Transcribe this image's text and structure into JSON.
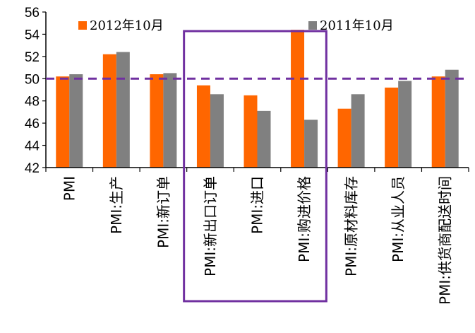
{
  "chart_data": {
    "type": "bar",
    "categories": [
      "PMI",
      "PMI:生产",
      "PMI:新订单",
      "PMI:新出口订单",
      "PMI:进口",
      "PMI:购进价格",
      "PMI:原材料库存",
      "PMI:从业人员",
      "PMI:供货商配送时间"
    ],
    "series": [
      {
        "name": "2012年10月",
        "color": "#ff6600",
        "values": [
          50.2,
          52.2,
          50.4,
          49.4,
          48.5,
          54.4,
          47.3,
          49.2,
          50.2
        ]
      },
      {
        "name": "2011年10月",
        "color": "#808080",
        "values": [
          50.4,
          52.4,
          50.5,
          48.6,
          47.1,
          46.3,
          48.6,
          49.8,
          50.8
        ]
      }
    ],
    "ylim": [
      42,
      56
    ],
    "yticks": [
      42,
      44,
      46,
      48,
      50,
      52,
      54,
      56
    ],
    "reference_line": {
      "value": 50,
      "style": "dashed",
      "color": "#7030a0"
    },
    "highlight_box": {
      "categories": [
        "PMI:新出口订单",
        "PMI:进口",
        "PMI:购进价格"
      ],
      "color": "#7030a0"
    },
    "legend": "top",
    "grid": false
  }
}
